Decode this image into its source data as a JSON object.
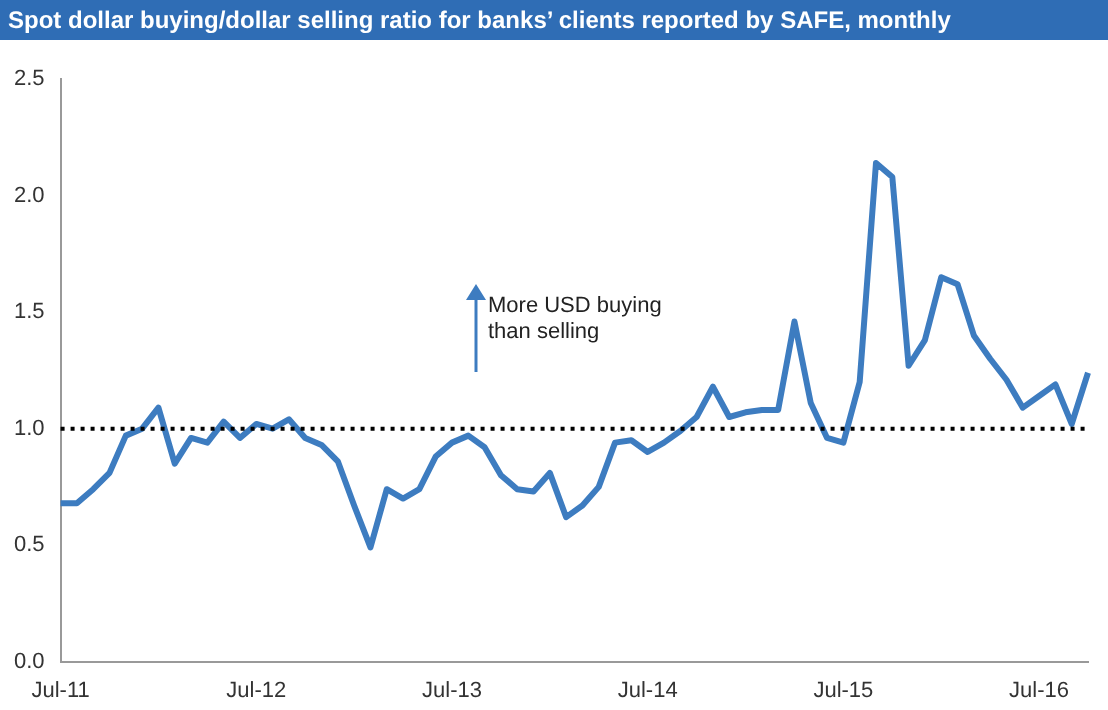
{
  "chart_data": {
    "type": "line",
    "title": "Spot dollar buying/dollar selling ratio for banks’ clients reported by SAFE, monthly",
    "categories": [
      "Jul-11",
      null,
      null,
      null,
      null,
      null,
      null,
      null,
      null,
      null,
      null,
      null,
      "Jul-12",
      null,
      null,
      null,
      null,
      null,
      null,
      null,
      null,
      null,
      null,
      null,
      "Jul-13",
      null,
      null,
      null,
      null,
      null,
      null,
      null,
      null,
      null,
      null,
      null,
      "Jul-14",
      null,
      null,
      null,
      null,
      null,
      null,
      null,
      null,
      null,
      null,
      null,
      "Jul-15",
      null,
      null,
      null,
      null,
      null,
      null,
      null,
      null,
      null,
      null,
      null,
      "Jul-16",
      null,
      null,
      null
    ],
    "series": [
      {
        "color": "#3d7cc0",
        "values": [
          0.68,
          0.68,
          0.74,
          0.81,
          0.97,
          1.0,
          1.09,
          0.85,
          0.96,
          0.94,
          1.03,
          0.96,
          1.02,
          1.0,
          1.04,
          0.96,
          0.93,
          0.86,
          0.67,
          0.49,
          0.74,
          0.7,
          0.74,
          0.88,
          0.94,
          0.97,
          0.92,
          0.8,
          0.74,
          0.73,
          0.81,
          0.62,
          0.67,
          0.75,
          0.94,
          0.95,
          0.9,
          0.94,
          0.99,
          1.05,
          1.18,
          1.05,
          1.07,
          1.08,
          1.08,
          1.46,
          1.11,
          0.96,
          0.94,
          1.2,
          2.14,
          2.08,
          1.27,
          1.38,
          1.65,
          1.62,
          1.4,
          1.3,
          1.21,
          1.09,
          1.14,
          1.19,
          1.02,
          1.24
        ]
      }
    ],
    "ylim": [
      0,
      2.5
    ],
    "yticks": [
      {
        "value": 0,
        "label": "0.0"
      },
      {
        "value": 0.5,
        "label": "0.5"
      },
      {
        "value": 1,
        "label": "1.0"
      },
      {
        "value": 1.5,
        "label": "1.5"
      },
      {
        "value": 2,
        "label": "2.0"
      },
      {
        "value": 2.5,
        "label": "2.5"
      }
    ],
    "ref_lines": [
      {
        "axis": "y",
        "value": 1,
        "color": "#000000",
        "line_style": "dotted"
      }
    ],
    "annotations": [
      "More USD buying than selling"
    ],
    "grid": false,
    "legend": false,
    "marker": "none",
    "line_style": "solid"
  }
}
